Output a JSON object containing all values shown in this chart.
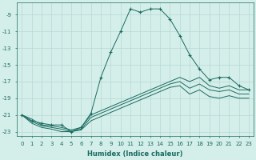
{
  "xlabel": "Humidex (Indice chaleur)",
  "background_color": "#d4eeea",
  "grid_color": "#b8d8d4",
  "line_color": "#1a6b60",
  "xlim": [
    -0.5,
    23.5
  ],
  "ylim": [
    -23.5,
    -7.5
  ],
  "xticks": [
    0,
    1,
    2,
    3,
    4,
    5,
    6,
    7,
    8,
    9,
    10,
    11,
    12,
    13,
    14,
    15,
    16,
    17,
    18,
    19,
    20,
    21,
    22,
    23
  ],
  "yticks": [
    -23,
    -21,
    -19,
    -17,
    -15,
    -13,
    -11,
    -9
  ],
  "series1": [
    [
      0,
      -21.0
    ],
    [
      1,
      -21.7
    ],
    [
      2,
      -22.0
    ],
    [
      3,
      -22.2
    ],
    [
      4,
      -22.2
    ],
    [
      5,
      -23.0
    ],
    [
      6,
      -22.5
    ],
    [
      7,
      -20.8
    ],
    [
      8,
      -16.5
    ],
    [
      9,
      -13.5
    ],
    [
      10,
      -11.0
    ],
    [
      11,
      -8.3
    ],
    [
      12,
      -8.7
    ],
    [
      13,
      -8.3
    ],
    [
      14,
      -8.3
    ],
    [
      15,
      -9.5
    ],
    [
      16,
      -11.5
    ],
    [
      17,
      -13.8
    ],
    [
      18,
      -15.5
    ],
    [
      19,
      -16.8
    ],
    [
      20,
      -16.5
    ],
    [
      21,
      -16.5
    ],
    [
      22,
      -17.5
    ],
    [
      23,
      -18.0
    ]
  ],
  "series2": [
    [
      0,
      -21.0
    ],
    [
      1,
      -21.5
    ],
    [
      2,
      -22.2
    ],
    [
      3,
      -22.3
    ],
    [
      4,
      -22.5
    ],
    [
      5,
      -22.8
    ],
    [
      6,
      -22.5
    ],
    [
      7,
      -21.0
    ],
    [
      8,
      -20.5
    ],
    [
      9,
      -20.0
    ],
    [
      10,
      -19.5
    ],
    [
      11,
      -19.0
    ],
    [
      12,
      -18.5
    ],
    [
      13,
      -18.0
    ],
    [
      14,
      -17.5
    ],
    [
      15,
      -17.0
    ],
    [
      16,
      -16.5
    ],
    [
      17,
      -17.0
    ],
    [
      18,
      -16.5
    ],
    [
      19,
      -17.5
    ],
    [
      20,
      -17.8
    ],
    [
      21,
      -17.5
    ],
    [
      22,
      -18.0
    ],
    [
      23,
      -18.0
    ]
  ],
  "series3": [
    [
      0,
      -21.0
    ],
    [
      1,
      -21.8
    ],
    [
      2,
      -22.3
    ],
    [
      3,
      -22.5
    ],
    [
      4,
      -22.7
    ],
    [
      5,
      -23.0
    ],
    [
      6,
      -22.7
    ],
    [
      7,
      -21.3
    ],
    [
      8,
      -20.8
    ],
    [
      9,
      -20.3
    ],
    [
      10,
      -19.8
    ],
    [
      11,
      -19.3
    ],
    [
      12,
      -18.8
    ],
    [
      13,
      -18.3
    ],
    [
      14,
      -17.8
    ],
    [
      15,
      -17.3
    ],
    [
      16,
      -17.0
    ],
    [
      17,
      -17.8
    ],
    [
      18,
      -17.3
    ],
    [
      19,
      -18.0
    ],
    [
      20,
      -18.2
    ],
    [
      21,
      -18.0
    ],
    [
      22,
      -18.5
    ],
    [
      23,
      -18.5
    ]
  ],
  "series4": [
    [
      0,
      -21.0
    ],
    [
      1,
      -22.0
    ],
    [
      2,
      -22.5
    ],
    [
      3,
      -22.7
    ],
    [
      4,
      -23.0
    ],
    [
      5,
      -23.0
    ],
    [
      6,
      -22.8
    ],
    [
      7,
      -21.7
    ],
    [
      8,
      -21.2
    ],
    [
      9,
      -20.7
    ],
    [
      10,
      -20.2
    ],
    [
      11,
      -19.7
    ],
    [
      12,
      -19.2
    ],
    [
      13,
      -18.7
    ],
    [
      14,
      -18.2
    ],
    [
      15,
      -17.7
    ],
    [
      16,
      -17.5
    ],
    [
      17,
      -18.5
    ],
    [
      18,
      -18.0
    ],
    [
      19,
      -18.8
    ],
    [
      20,
      -19.0
    ],
    [
      21,
      -18.7
    ],
    [
      22,
      -19.0
    ],
    [
      23,
      -19.0
    ]
  ]
}
